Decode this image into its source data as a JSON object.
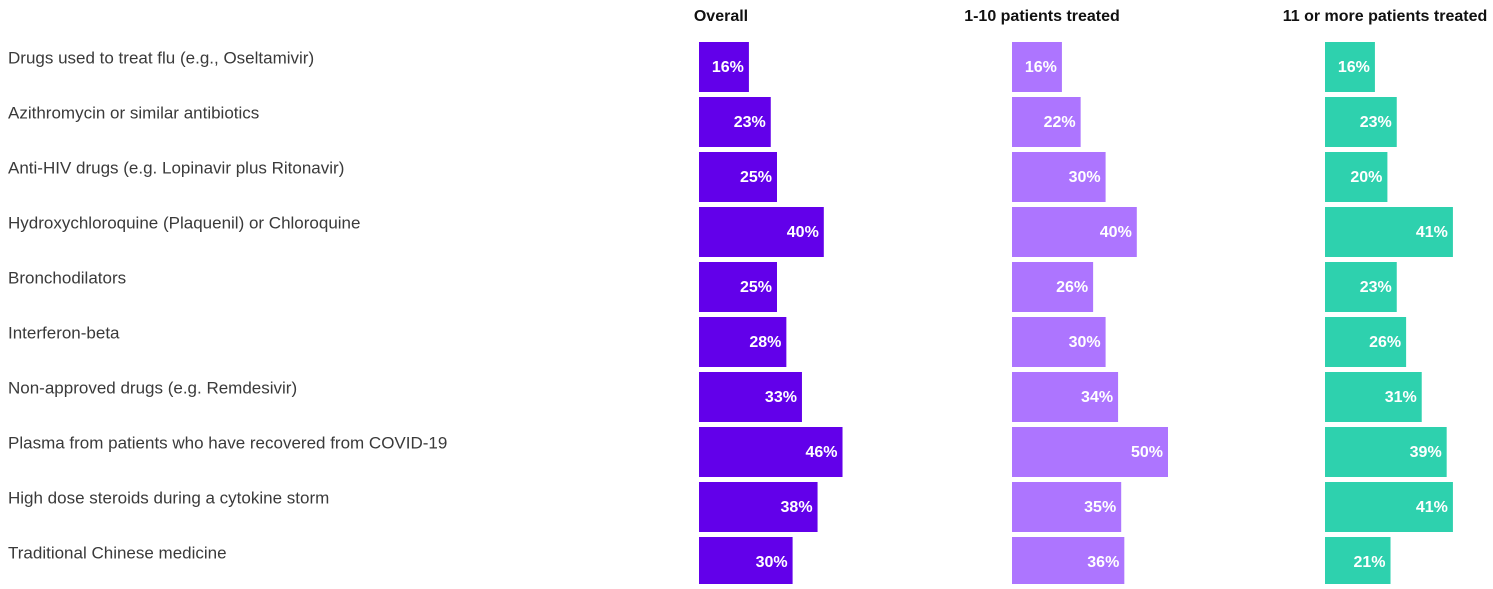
{
  "chart_data": {
    "type": "bar",
    "orientation": "horizontal",
    "categories": [
      "Drugs used to treat flu (e.g., Oseltamivir)",
      "Azithromycin or similar antibiotics",
      "Anti-HIV drugs (e.g. Lopinavir plus Ritonavir)",
      "Hydroxychloroquine (Plaquenil) or Chloroquine",
      "Bronchodilators",
      "Interferon-beta",
      "Non-approved drugs (e.g. Remdesivir)",
      "Plasma from patients who have recovered from COVID-19",
      "High dose steroids during a cytokine storm",
      "Traditional Chinese medicine"
    ],
    "xlim": [
      0,
      50
    ],
    "series": [
      {
        "name": "Overall",
        "color": "#6200ea",
        "values": [
          16,
          23,
          25,
          40,
          25,
          28,
          33,
          46,
          38,
          30
        ],
        "value_labels": [
          "16%",
          "23%",
          "25%",
          "40%",
          "25%",
          "28%",
          "33%",
          "46%",
          "38%",
          "30%"
        ]
      },
      {
        "name": "1-10 patients treated",
        "color": "#ad75ff",
        "values": [
          16,
          22,
          30,
          40,
          26,
          30,
          34,
          50,
          35,
          36
        ],
        "value_labels": [
          "16%",
          "22%",
          "30%",
          "40%",
          "26%",
          "30%",
          "34%",
          "50%",
          "35%",
          "36%"
        ]
      },
      {
        "name": "11 or more patients treated",
        "color": "#2ed1ae",
        "values": [
          16,
          23,
          20,
          41,
          23,
          26,
          31,
          39,
          41,
          21
        ],
        "value_labels": [
          "16%",
          "23%",
          "20%",
          "41%",
          "23%",
          "26%",
          "31%",
          "39%",
          "41%",
          "21%"
        ]
      }
    ]
  }
}
